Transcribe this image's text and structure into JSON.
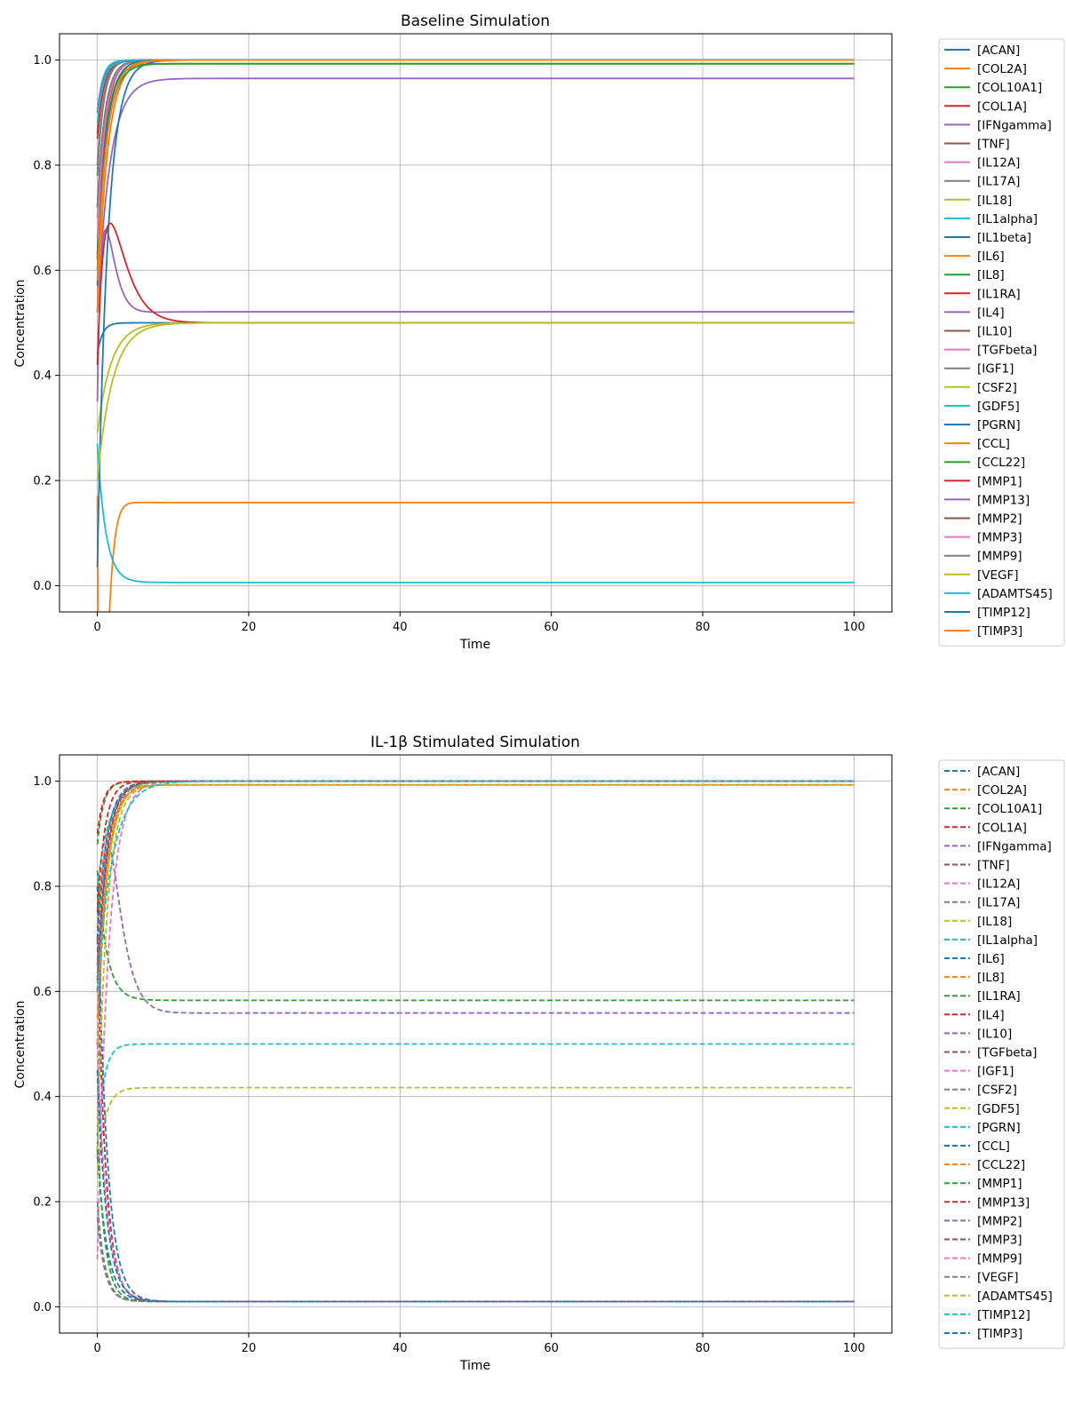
{
  "chart_data": [
    {
      "type": "line",
      "title": "Baseline Simulation",
      "xlabel": "Time",
      "ylabel": "Concentration",
      "xlim": [
        -5,
        105
      ],
      "ylim": [
        -0.05,
        1.05
      ],
      "xticks": [
        0,
        20,
        40,
        60,
        80,
        100
      ],
      "yticks": [
        0.0,
        0.2,
        0.4,
        0.6,
        0.8,
        1.0
      ],
      "grid": true,
      "legend_position": "outside right",
      "line_style": "solid",
      "series": [
        {
          "name": "[ACAN]",
          "color": "#1f77b4",
          "start": 0.78,
          "final": 1.0,
          "rate": 1.2
        },
        {
          "name": "[COL2A]",
          "color": "#ff7f0e",
          "start": 0.7,
          "final": 1.0,
          "rate": 1.0
        },
        {
          "name": "[COL10A1]",
          "color": "#2ca02c",
          "start": 0.72,
          "final": 0.993,
          "rate": 0.8
        },
        {
          "name": "[COL1A]",
          "color": "#d62728",
          "start": 0.86,
          "final": 1.0,
          "rate": 1.3
        },
        {
          "name": "[IFNgamma]",
          "color": "#9467bd",
          "start": 0.52,
          "final": 0.965,
          "rate": 0.6
        },
        {
          "name": "[TNF]",
          "color": "#8c564b",
          "start": 0.52,
          "final": 1.0,
          "rate": 1.1
        },
        {
          "name": "[IL12A]",
          "color": "#e377c2",
          "start": 0.62,
          "final": 1.0,
          "rate": 1.0
        },
        {
          "name": "[IL17A]",
          "color": "#7f7f7f",
          "start": 0.78,
          "final": 1.0,
          "rate": 1.2
        },
        {
          "name": "[IL18]",
          "color": "#bcbd22",
          "start": 0.66,
          "final": 0.993,
          "rate": 0.9
        },
        {
          "name": "[IL1alpha]",
          "color": "#17becf",
          "start": 0.9,
          "final": 1.0,
          "rate": 1.4
        },
        {
          "name": "[IL1beta]",
          "color": "#1f77b4",
          "start": 0.44,
          "final": 0.5,
          "rate": 1.5
        },
        {
          "name": "[IL6]",
          "color": "#ff7f0e",
          "start": 0.17,
          "final": 0.158,
          "rate": 0.55,
          "dip": 0.6,
          "dipTime": 0.5
        },
        {
          "name": "[IL8]",
          "color": "#2ca02c",
          "start": 0.62,
          "final": 0.993,
          "rate": 0.9
        },
        {
          "name": "[IL1RA]",
          "color": "#d62728",
          "start": 0.85,
          "final": 1.0,
          "rate": 1.2
        },
        {
          "name": "[IL4]",
          "color": "#9467bd",
          "start": 0.35,
          "final": 0.521,
          "rate": 0.6,
          "dip": -0.25,
          "dipTime": 0.9
        },
        {
          "name": "[IL10]",
          "color": "#8c564b",
          "start": 0.63,
          "final": 1.0,
          "rate": 1.0
        },
        {
          "name": "[TGFbeta]",
          "color": "#e377c2",
          "start": 0.66,
          "final": 1.0,
          "rate": 1.0
        },
        {
          "name": "[IGF1]",
          "color": "#7f7f7f",
          "start": 0.8,
          "final": 1.0,
          "rate": 1.2
        },
        {
          "name": "[CSF2]",
          "color": "#bcbd22",
          "start": 0.29,
          "final": 0.5,
          "rate": 0.55
        },
        {
          "name": "[GDF5]",
          "color": "#17becf",
          "start": 0.27,
          "final": 0.006,
          "rate": 0.9
        },
        {
          "name": "[PGRN]",
          "color": "#1f77b4",
          "start": 0.035,
          "final": 1.0,
          "rate": 0.75
        },
        {
          "name": "[CCL]",
          "color": "#ff7f0e",
          "start": 0.52,
          "final": 1.0,
          "rate": 0.75
        },
        {
          "name": "[CCL22]",
          "color": "#2ca02c",
          "start": 0.6,
          "final": 0.993,
          "rate": 0.8
        },
        {
          "name": "[MMP1]",
          "color": "#d62728",
          "start": 0.42,
          "final": 0.5,
          "rate": 0.6,
          "dip": -0.22,
          "dipTime": 1.5
        },
        {
          "name": "[MMP13]",
          "color": "#9467bd",
          "start": 0.9,
          "final": 1.0,
          "rate": 1.2
        },
        {
          "name": "[MMP2]",
          "color": "#8c564b",
          "start": 0.72,
          "final": 1.0,
          "rate": 1.0
        },
        {
          "name": "[MMP3]",
          "color": "#e377c2",
          "start": 0.72,
          "final": 1.0,
          "rate": 1.0
        },
        {
          "name": "[MMP9]",
          "color": "#7f7f7f",
          "start": 0.72,
          "final": 1.0,
          "rate": 1.0
        },
        {
          "name": "[VEGF]",
          "color": "#bcbd22",
          "start": 0.2,
          "final": 0.5,
          "rate": 0.5
        },
        {
          "name": "[ADAMTS45]",
          "color": "#17becf",
          "start": 0.88,
          "final": 1.0,
          "rate": 1.2
        },
        {
          "name": "[TIMP12]",
          "color": "#1f77b4",
          "start": 0.57,
          "final": 1.0,
          "rate": 0.9
        },
        {
          "name": "[TIMP3]",
          "color": "#ff7f0e",
          "start": 0.58,
          "final": 1.0,
          "rate": 0.8
        }
      ]
    },
    {
      "type": "line",
      "title": "IL-1β Stimulated Simulation",
      "xlabel": "Time",
      "ylabel": "Concentration",
      "xlim": [
        -5,
        105
      ],
      "ylim": [
        -0.05,
        1.05
      ],
      "xticks": [
        0,
        20,
        40,
        60,
        80,
        100
      ],
      "yticks": [
        0.0,
        0.2,
        0.4,
        0.6,
        0.8,
        1.0
      ],
      "grid": true,
      "legend_position": "outside right",
      "line_style": "dashed",
      "series": [
        {
          "name": "[ACAN]",
          "color": "#1f77b4",
          "start": 0.3,
          "final": 0.01,
          "rate": 0.8
        },
        {
          "name": "[COL2A]",
          "color": "#ff7f0e",
          "start": 0.72,
          "final": 0.993,
          "rate": 0.8
        },
        {
          "name": "[COL10A1]",
          "color": "#2ca02c",
          "start": 0.88,
          "final": 1.0,
          "rate": 1.2
        },
        {
          "name": "[COL1A]",
          "color": "#d62728",
          "start": 0.9,
          "final": 1.0,
          "rate": 1.2
        },
        {
          "name": "[IFNgamma]",
          "color": "#9467bd",
          "start": 0.6,
          "final": 1.0,
          "rate": 0.8
        },
        {
          "name": "[TNF]",
          "color": "#8c564b",
          "start": 0.6,
          "final": 1.0,
          "rate": 0.8
        },
        {
          "name": "[IL12A]",
          "color": "#e377c2",
          "start": 0.5,
          "final": 1.0,
          "rate": 0.8
        },
        {
          "name": "[IL17A]",
          "color": "#7f7f7f",
          "start": 0.5,
          "final": 1.0,
          "rate": 0.8
        },
        {
          "name": "[IL18]",
          "color": "#bcbd22",
          "start": 0.25,
          "final": 0.417,
          "rate": 1.0
        },
        {
          "name": "[IL1alpha]",
          "color": "#17becf",
          "start": 0.3,
          "final": 0.5,
          "rate": 1.2
        },
        {
          "name": "[IL6]",
          "color": "#1f77b4",
          "start": 0.7,
          "final": 1.0,
          "rate": 0.8
        },
        {
          "name": "[IL8]",
          "color": "#ff7f0e",
          "start": 0.5,
          "final": 0.993,
          "rate": 0.8
        },
        {
          "name": "[IL1RA]",
          "color": "#2ca02c",
          "start": 0.83,
          "final": 0.583,
          "rate": 0.8
        },
        {
          "name": "[IL4]",
          "color": "#d62728",
          "start": 0.7,
          "final": 0.01,
          "rate": 0.9
        },
        {
          "name": "[IL10]",
          "color": "#9467bd",
          "start": 0.28,
          "final": 0.559,
          "rate": 0.55,
          "dip": -0.45,
          "dipTime": 1.2
        },
        {
          "name": "[TGFbeta]",
          "color": "#8c564b",
          "start": 0.62,
          "final": 1.0,
          "rate": 0.8
        },
        {
          "name": "[IGF1]",
          "color": "#e377c2",
          "start": 0.09,
          "final": 1.0,
          "rate": 0.7
        },
        {
          "name": "[CSF2]",
          "color": "#7f7f7f",
          "start": 0.2,
          "final": 0.01,
          "rate": 1.0
        },
        {
          "name": "[GDF5]",
          "color": "#bcbd22",
          "start": 0.55,
          "final": 1.0,
          "rate": 0.7
        },
        {
          "name": "[PGRN]",
          "color": "#17becf",
          "start": 0.8,
          "final": 1.0,
          "rate": 0.6
        },
        {
          "name": "[CCL]",
          "color": "#1f77b4",
          "start": 0.8,
          "final": 0.01,
          "rate": 0.8
        },
        {
          "name": "[CCL22]",
          "color": "#ff7f0e",
          "start": 0.55,
          "final": 0.993,
          "rate": 0.8
        },
        {
          "name": "[MMP1]",
          "color": "#2ca02c",
          "start": 0.33,
          "final": 0.01,
          "rate": 1.0
        },
        {
          "name": "[MMP13]",
          "color": "#d62728",
          "start": 0.75,
          "final": 1.0,
          "rate": 1.0
        },
        {
          "name": "[MMP2]",
          "color": "#9467bd",
          "start": 0.65,
          "final": 1.0,
          "rate": 0.8
        },
        {
          "name": "[MMP3]",
          "color": "#8c564b",
          "start": 0.6,
          "final": 1.0,
          "rate": 0.8
        },
        {
          "name": "[MMP9]",
          "color": "#e377c2",
          "start": 0.5,
          "final": 0.01,
          "rate": 0.8
        },
        {
          "name": "[VEGF]",
          "color": "#7f7f7f",
          "start": 0.17,
          "final": 0.01,
          "rate": 1.0
        },
        {
          "name": "[ADAMTS45]",
          "color": "#bcbd22",
          "start": 0.3,
          "final": 0.993,
          "rate": 0.8
        },
        {
          "name": "[TIMP12]",
          "color": "#17becf",
          "start": 0.6,
          "final": 1.0,
          "rate": 0.5
        },
        {
          "name": "[TIMP3]",
          "color": "#1f77b4",
          "start": 0.45,
          "final": 0.01,
          "rate": 0.8
        }
      ]
    }
  ]
}
